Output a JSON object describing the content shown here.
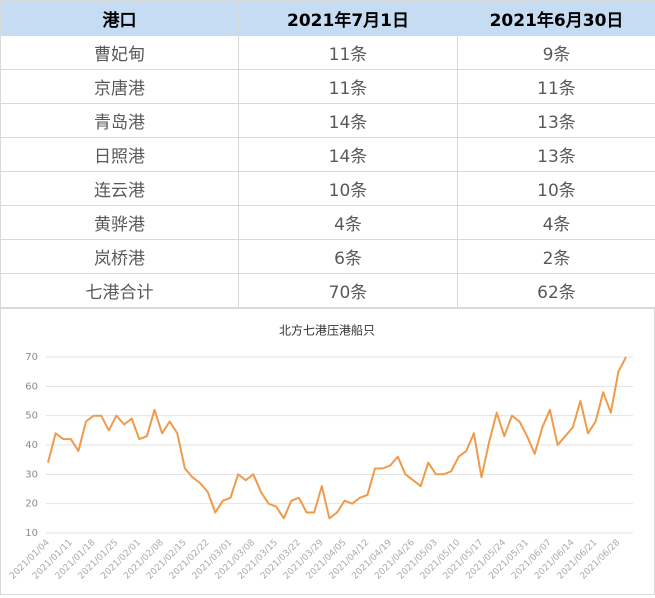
{
  "table": {
    "header": [
      "港口",
      "2021年7月1日",
      "2021年6月30日"
    ],
    "rows": [
      [
        "曹妃甸",
        "11条",
        "9条"
      ],
      [
        "京唐港",
        "11条",
        "11条"
      ],
      [
        "青岛港",
        "14条",
        "13条"
      ],
      [
        "日照港",
        "14条",
        "13条"
      ],
      [
        "连云港",
        "10条",
        "10条"
      ],
      [
        "黄骅港",
        "4条",
        "4条"
      ],
      [
        "岚桥港",
        "6条",
        "2条"
      ],
      [
        "七港合计",
        "70条",
        "62条"
      ]
    ]
  },
  "chart_data": {
    "type": "line",
    "title": "北方七港压港船只",
    "categories": [
      "2021/01/04",
      null,
      null,
      "2021/01/11",
      null,
      null,
      "2021/01/18",
      null,
      null,
      "2021/01/25",
      null,
      null,
      "2021/02/01",
      null,
      null,
      "2021/02/08",
      null,
      null,
      "2021/02/15",
      null,
      null,
      "2021/02/22",
      null,
      null,
      "2021/03/01",
      null,
      null,
      "2021/03/08",
      null,
      null,
      "2021/03/15",
      null,
      null,
      "2021/03/22",
      null,
      null,
      "2021/03/29",
      null,
      null,
      "2021/04/05",
      null,
      null,
      "2021/04/12",
      null,
      null,
      "2021/04/19",
      null,
      null,
      "2021/04/26",
      null,
      null,
      "2021/05/03",
      null,
      null,
      "2021/05/10",
      null,
      null,
      "2021/05/17",
      null,
      null,
      "2021/05/24",
      null,
      null,
      "2021/05/31",
      null,
      null,
      "2021/06/07",
      null,
      null,
      "2021/06/14",
      null,
      null,
      "2021/06/21",
      null,
      null,
      "2021/06/28",
      null
    ],
    "series": [
      {
        "color": "#ef9a4c",
        "values": [
          34,
          44,
          42,
          42,
          38,
          48,
          50,
          50,
          45,
          50,
          47,
          49,
          42,
          43,
          52,
          44,
          48,
          44,
          32,
          29,
          27,
          24,
          17,
          21,
          22,
          30,
          28,
          30,
          24,
          20,
          19,
          15,
          21,
          22,
          17,
          17,
          26,
          15,
          17,
          21,
          20,
          22,
          23,
          32,
          32,
          33,
          36,
          30,
          28,
          26,
          34,
          30,
          30,
          31,
          36,
          38,
          44,
          29,
          41,
          51,
          43,
          50,
          48,
          43,
          37,
          46,
          52,
          40,
          43,
          46,
          55,
          44,
          48,
          58,
          51,
          65,
          70
        ]
      }
    ],
    "ylim": [
      10,
      70
    ],
    "yticks": [
      10,
      20,
      30,
      40,
      50,
      60,
      70
    ],
    "grid": true
  }
}
